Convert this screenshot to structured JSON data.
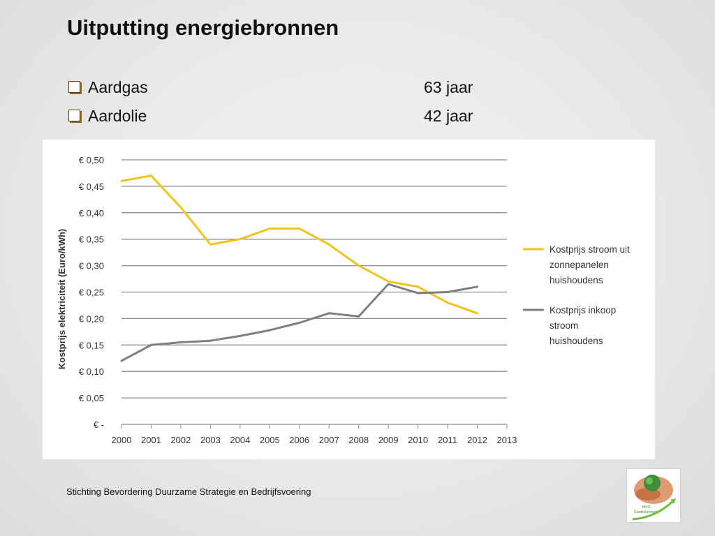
{
  "slide": {
    "title": "Uitputting energiebronnen",
    "bullets": [
      {
        "label": "Aardgas",
        "value": "63 jaar"
      },
      {
        "label": "Aardolie",
        "value": "42 jaar"
      }
    ],
    "footer": "Stichting Bevordering Duurzame Strategie en Bedrijfsvoering",
    "logo_text": "MVO Groeikeurmerk"
  },
  "chart_data": {
    "type": "line",
    "ylabel": "Kostprijs elektriciteit (Euro/kWh)",
    "xlabel": "",
    "categories": [
      "2000",
      "2001",
      "2002",
      "2003",
      "2004",
      "2005",
      "2006",
      "2007",
      "2008",
      "2009",
      "2010",
      "2011",
      "2012",
      "2013"
    ],
    "yticks": [
      "€ -",
      "€ 0,05",
      "€ 0,10",
      "€ 0,15",
      "€ 0,20",
      "€ 0,25",
      "€ 0,30",
      "€ 0,35",
      "€ 0,40",
      "€ 0,45",
      "€ 0,50"
    ],
    "ylim": [
      0,
      0.5
    ],
    "grid": true,
    "legend_position": "right",
    "series": [
      {
        "name": "Kostprijs stroom uit zonnepanelen huishoudens",
        "name_lines": [
          "Kostprijs stroom uit",
          "zonnepanelen",
          "huishoudens"
        ],
        "color": "#f2c31b",
        "x": [
          2000,
          2001,
          2002,
          2003,
          2004,
          2005,
          2006,
          2007,
          2008,
          2009,
          2010,
          2011,
          2012
        ],
        "values": [
          0.46,
          0.47,
          0.41,
          0.34,
          0.35,
          0.37,
          0.37,
          0.34,
          0.3,
          0.27,
          0.26,
          0.23,
          0.21
        ]
      },
      {
        "name": "Kostprijs inkoop stroom huishoudens",
        "name_lines": [
          "Kostprijs inkoop",
          "stroom",
          "huishoudens"
        ],
        "color": "#7f7f7f",
        "x": [
          2000,
          2001,
          2002,
          2003,
          2004,
          2005,
          2006,
          2007,
          2008,
          2009,
          2010,
          2011,
          2012
        ],
        "values": [
          0.12,
          0.15,
          0.155,
          0.158,
          0.167,
          0.178,
          0.192,
          0.21,
          0.204,
          0.265,
          0.248,
          0.25,
          0.26
        ]
      }
    ]
  }
}
